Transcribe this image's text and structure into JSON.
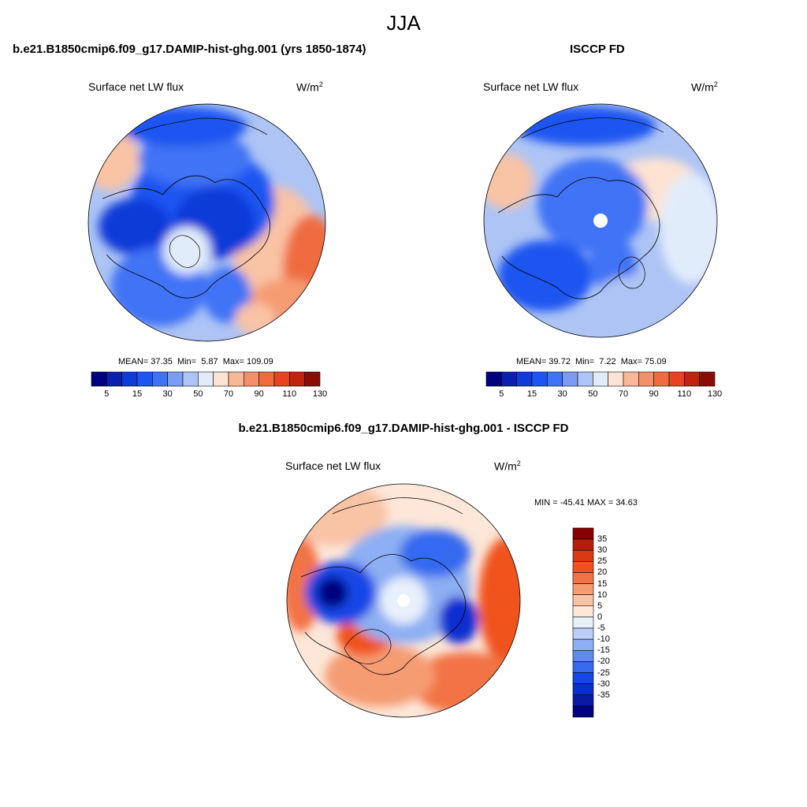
{
  "page": {
    "season": "JJA",
    "diff_title": "b.e21.B1850cmip6.f09_g17.DAMIP-hist-ghg.001 - ISCCP FD"
  },
  "panels": [
    {
      "title": "b.e21.B1850cmip6.f09_g17.DAMIP-hist-ghg.001 (yrs 1850-1874)",
      "variable": "Surface net LW flux",
      "units": "W/m",
      "units_sup": "2",
      "stats": {
        "mean_label": "MEAN=",
        "mean": "37.35",
        "min_label": "Min=",
        "min": "5.87",
        "max_label": "Max=",
        "max": "109.09"
      }
    },
    {
      "title": "ISCCP FD",
      "variable": "Surface net LW flux",
      "units": "W/m",
      "units_sup": "2",
      "stats": {
        "mean_label": "MEAN=",
        "mean": "39.72",
        "min_label": "Min=",
        "min": "7.22",
        "max_label": "Max=",
        "max": "75.09"
      }
    },
    {
      "variable": "Surface net LW flux",
      "units": "W/m",
      "units_sup": "2",
      "stats_text": "MIN = -45.41 MAX =  34.63"
    }
  ],
  "colorbars": {
    "abs": {
      "colors": [
        "#000080",
        "#0a1fb0",
        "#0f3bd8",
        "#1e55f0",
        "#3f73f5",
        "#7c9cf3",
        "#adc4f5",
        "#e1ecfb",
        "#fde3d2",
        "#f8b898",
        "#f3906b",
        "#f06c3f",
        "#e74222",
        "#c2230f",
        "#8a0d05"
      ],
      "tick_labels": [
        "5",
        "15",
        "30",
        "50",
        "70",
        "90",
        "110",
        "130"
      ]
    },
    "diff": {
      "colors": [
        "#880000",
        "#b51e0a",
        "#d93a14",
        "#f0521f",
        "#f27345",
        "#f59c73",
        "#f9c3a5",
        "#fde7d8",
        "#e8f0fd",
        "#b9cff7",
        "#8daff3",
        "#5f8af0",
        "#3669ef",
        "#1346e6",
        "#0a2ed0",
        "#0a1aa5",
        "#000080"
      ],
      "tick_labels": [
        "35",
        "30",
        "25",
        "20",
        "15",
        "10",
        "5",
        "0",
        "-5",
        "-10",
        "-15",
        "-20",
        "-25",
        "-30",
        "-35"
      ]
    }
  }
}
